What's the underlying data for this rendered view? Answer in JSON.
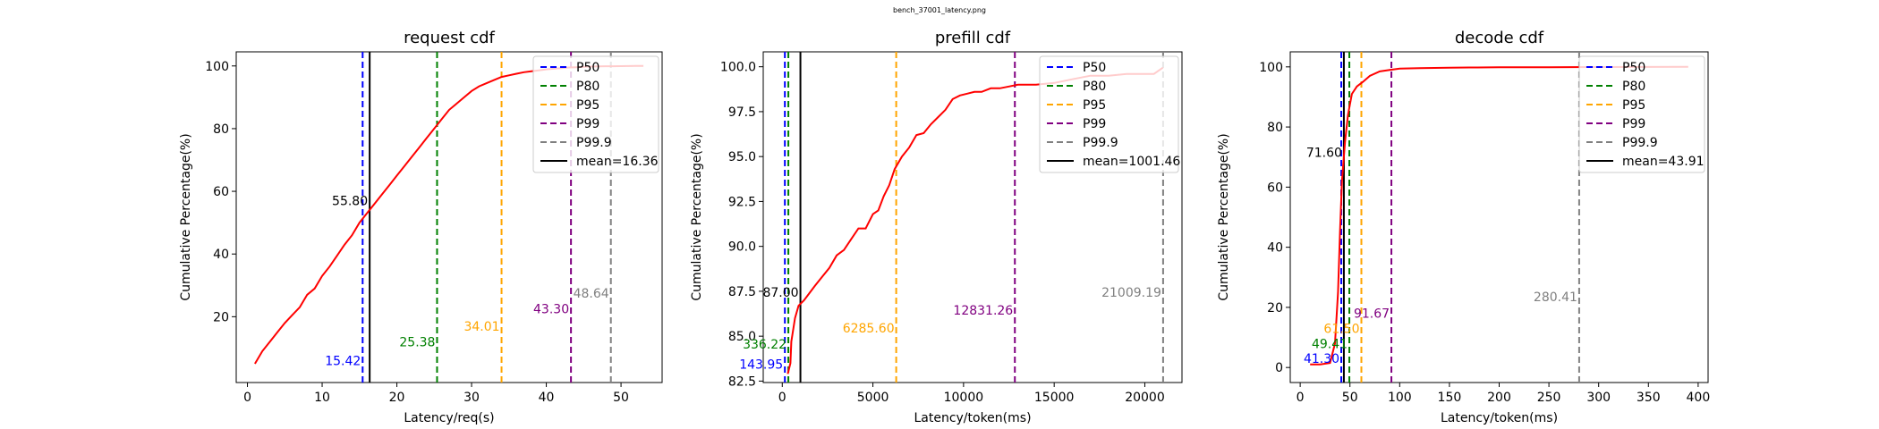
{
  "figure": {
    "suptitle": "bench_37001_latency.png"
  },
  "colors": {
    "P50": "#0000ff",
    "P80": "#008000",
    "P95": "#ffa500",
    "P99": "#800080",
    "P99.9": "#808080",
    "mean": "#000000",
    "cdf_line": "#ff0000"
  },
  "chart_data": [
    {
      "type": "line",
      "title": "request cdf",
      "xlabel": "Latency/req(s)",
      "ylabel": "Cumulative Percentage(%)",
      "xlim": [
        -1.5,
        55.5
      ],
      "ylim": [
        -1.0,
        104.5
      ],
      "xticks": [
        "0",
        "10",
        "20",
        "30",
        "40",
        "50"
      ],
      "xtick_values": [
        0,
        10,
        20,
        30,
        40,
        50
      ],
      "yticks": [
        "20",
        "40",
        "60",
        "80",
        "100"
      ],
      "ytick_values": [
        20,
        40,
        60,
        80,
        100
      ],
      "grid": false,
      "legend_position": "upper right",
      "series": [
        {
          "x": [
            1,
            2,
            3,
            4,
            5,
            6,
            7,
            8,
            9,
            10,
            11,
            12,
            13,
            14,
            15,
            16,
            17,
            18,
            19,
            20,
            21,
            22,
            23,
            24,
            25,
            26,
            27,
            28,
            29,
            30,
            31,
            32,
            33,
            34,
            35,
            36,
            37,
            38,
            39,
            40,
            41,
            42,
            43,
            44,
            45,
            46,
            47,
            48,
            49,
            50,
            51,
            52,
            53
          ],
          "y": [
            5,
            9,
            12,
            15,
            18,
            20.5,
            23,
            27,
            29,
            33,
            36,
            39.5,
            43,
            46,
            50,
            53,
            56,
            59,
            62,
            65,
            68,
            71,
            74,
            77,
            80,
            83,
            86,
            88,
            90,
            92,
            93.5,
            94.5,
            95.5,
            96.5,
            97,
            97.5,
            98,
            98.3,
            98.6,
            98.9,
            99.1,
            99.3,
            99.5,
            99.6,
            99.7,
            99.8,
            99.85,
            99.9,
            99.92,
            99.95,
            99.97,
            99.99,
            100
          ]
        }
      ],
      "percentiles": [
        {
          "name": "P50",
          "value": 15.42,
          "label": "15.42",
          "label_y": 6
        },
        {
          "name": "P80",
          "value": 25.38,
          "label": "25.38",
          "label_y": 12
        },
        {
          "name": "P95",
          "value": 34.01,
          "label": "34.01",
          "label_y": 17
        },
        {
          "name": "P99",
          "value": 43.3,
          "label": "43.30",
          "label_y": 22.5
        },
        {
          "name": "P99.9",
          "value": 48.64,
          "label": "48.64",
          "label_y": 27.5
        }
      ],
      "mean": {
        "value": 16.36,
        "legend": "mean=16.36",
        "label": "55.80",
        "label_y": 57
      },
      "legend": [
        "P50",
        "P80",
        "P95",
        "P99",
        "P99.9",
        "mean=16.36"
      ]
    },
    {
      "type": "line",
      "title": "prefill cdf",
      "xlabel": "Latency/token(ms)",
      "ylabel": "Cumulative Percentage(%)",
      "xlim": [
        -1050,
        22050
      ],
      "ylim": [
        82.42,
        100.83
      ],
      "xticks": [
        "0",
        "5000",
        "10000",
        "15000",
        "20000"
      ],
      "xtick_values": [
        0,
        5000,
        10000,
        15000,
        20000
      ],
      "yticks": [
        "82.5",
        "85.0",
        "87.5",
        "90.0",
        "92.5",
        "95.0",
        "97.5",
        "100.0"
      ],
      "ytick_values": [
        82.5,
        85.0,
        87.5,
        90.0,
        92.5,
        95.0,
        97.5,
        100.0
      ],
      "grid": false,
      "legend_position": "upper right",
      "series": [
        {
          "x": [
            300,
            450,
            500,
            700,
            900,
            1200,
            1500,
            1800,
            2200,
            2600,
            3000,
            3400,
            3800,
            4200,
            4600,
            5000,
            5300,
            5600,
            5900,
            6200,
            6600,
            7000,
            7400,
            7800,
            8200,
            8600,
            9000,
            9400,
            9800,
            10200,
            10600,
            11000,
            11500,
            12000,
            12500,
            13000,
            13500,
            14000,
            15000,
            16000,
            17000,
            18000,
            19000,
            20000,
            20500,
            21000
          ],
          "y": [
            82.9,
            83.5,
            84.7,
            86.0,
            86.7,
            87.0,
            87.4,
            87.8,
            88.3,
            88.8,
            89.5,
            89.8,
            90.4,
            91.0,
            91.0,
            91.8,
            92.0,
            92.8,
            93.4,
            94.3,
            95.0,
            95.5,
            96.2,
            96.3,
            96.8,
            97.2,
            97.6,
            98.2,
            98.4,
            98.5,
            98.6,
            98.6,
            98.8,
            98.8,
            98.9,
            99.0,
            99.0,
            99.0,
            99.1,
            99.3,
            99.5,
            99.5,
            99.6,
            99.6,
            99.6,
            99.95
          ]
        }
      ],
      "percentiles": [
        {
          "name": "P50",
          "value": 143.95,
          "label": "143.95",
          "label_y": 83.45
        },
        {
          "name": "P80",
          "value": 336.22,
          "label": "336.22",
          "label_y": 84.55
        },
        {
          "name": "P95",
          "value": 6285.6,
          "label": "6285.60",
          "label_y": 85.45
        },
        {
          "name": "P99",
          "value": 12831.26,
          "label": "12831.26",
          "label_y": 86.45
        },
        {
          "name": "P99.9",
          "value": 21009.19,
          "label": "21009.19",
          "label_y": 87.45
        }
      ],
      "mean": {
        "value": 1001.46,
        "legend": "mean=1001.46",
        "label": "87.00",
        "label_y": 87.45
      },
      "legend": [
        "P50",
        "P80",
        "P95",
        "P99",
        "P99.9",
        "mean=1001.46"
      ]
    },
    {
      "type": "line",
      "title": "decode cdf",
      "xlabel": "Latency/token(ms)",
      "ylabel": "Cumulative Percentage(%)",
      "xlim": [
        -10,
        410
      ],
      "ylim": [
        -5,
        105
      ],
      "xticks": [
        "0",
        "50",
        "100",
        "150",
        "200",
        "250",
        "300",
        "350",
        "400"
      ],
      "xtick_values": [
        0,
        50,
        100,
        150,
        200,
        250,
        300,
        350,
        400
      ],
      "yticks": [
        "0",
        "20",
        "40",
        "60",
        "80",
        "100"
      ],
      "ytick_values": [
        0,
        20,
        40,
        60,
        80,
        100
      ],
      "grid": false,
      "legend_position": "upper right",
      "series": [
        {
          "x": [
            10,
            20,
            30,
            35,
            38,
            40,
            42,
            45,
            48,
            52,
            57,
            63,
            70,
            80,
            90,
            100,
            120,
            150,
            170,
            200,
            250,
            300,
            350,
            390
          ],
          "y": [
            1,
            1,
            1.5,
            8,
            25,
            45,
            62,
            75,
            84,
            91,
            93.5,
            95,
            97,
            98.5,
            99,
            99.4,
            99.6,
            99.7,
            99.8,
            99.85,
            99.9,
            99.95,
            99.98,
            100
          ]
        }
      ],
      "percentiles": [
        {
          "name": "P50",
          "value": 41.3,
          "label": "41.30",
          "label_y": 3
        },
        {
          "name": "P80",
          "value": 49.41,
          "label": "49.41",
          "label_y": 8
        },
        {
          "name": "P95",
          "value": 61.5,
          "label": "61.50",
          "label_y": 13
        },
        {
          "name": "P99",
          "value": 91.67,
          "label": "91.67",
          "label_y": 18
        },
        {
          "name": "P99.9",
          "value": 280.41,
          "label": "280.41",
          "label_y": 23.5
        }
      ],
      "mean": {
        "value": 43.91,
        "legend": "mean=43.91",
        "label": "71.60",
        "label_y": 71.5
      },
      "legend": [
        "P50",
        "P80",
        "P95",
        "P99",
        "P99.9",
        "mean=43.91"
      ]
    }
  ]
}
